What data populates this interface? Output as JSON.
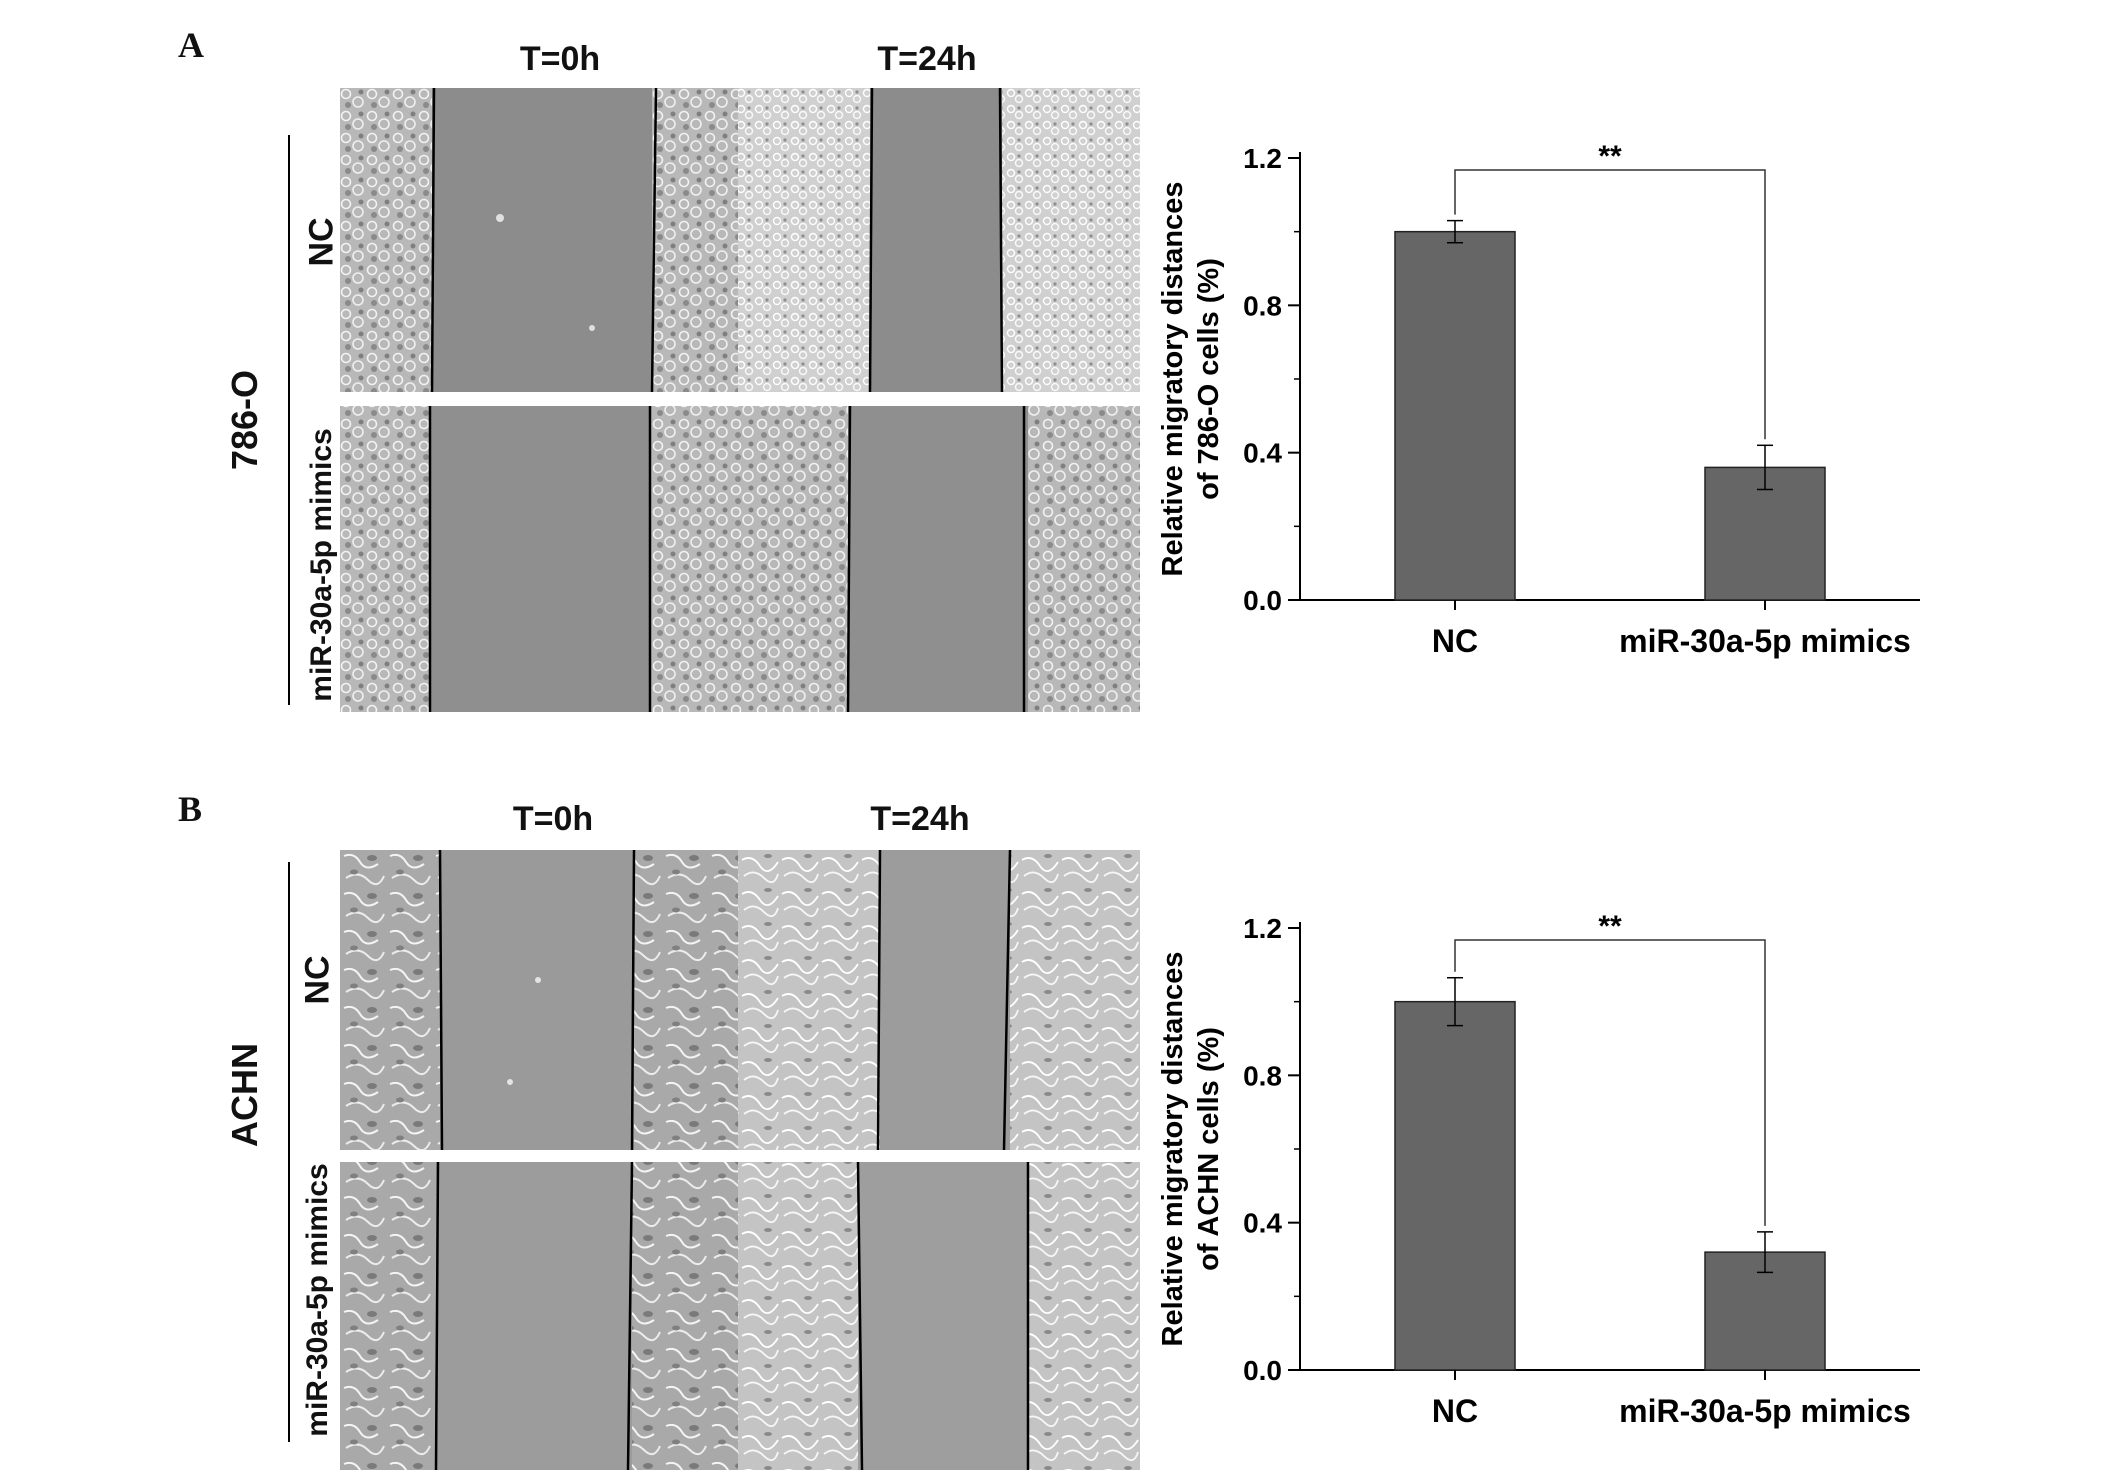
{
  "panels": [
    {
      "letter": "A",
      "cell_line": "786-O",
      "time_labels": [
        "T=0h",
        "T=24h"
      ],
      "row_labels": [
        "NC",
        "miR-30a-5p mimics"
      ],
      "image_colors": {
        "gap": "#8c8c8c",
        "cells": "#b8b8b8",
        "dense": "#d2d2d2"
      }
    },
    {
      "letter": "B",
      "cell_line": "ACHN",
      "time_labels": [
        "T=0h",
        "T=24h"
      ],
      "row_labels": [
        "NC",
        "miR-30a-5p mimics"
      ],
      "image_colors": {
        "gap": "#9a9a9a",
        "cells": "#bdbdbd",
        "dense": "#cfcfcf"
      }
    }
  ],
  "chart_data": [
    {
      "type": "bar",
      "categories": [
        "NC",
        "miR-30a-5p mimics"
      ],
      "values": [
        1.0,
        0.36
      ],
      "errors": [
        0.03,
        0.06
      ],
      "ylabel_lines": [
        "Relative migratory distances",
        "of 786-O cells (%)"
      ],
      "yticks": [
        "0.0",
        "0.4",
        "0.8",
        "1.2"
      ],
      "ylim": [
        0,
        1.2
      ],
      "significance": "**",
      "bar_color": "#666666"
    },
    {
      "type": "bar",
      "categories": [
        "NC",
        "miR-30a-5p mimics"
      ],
      "values": [
        1.0,
        0.32
      ],
      "errors": [
        0.065,
        0.055
      ],
      "ylabel_lines": [
        "Relative migratory distances",
        "of ACHN cells (%)"
      ],
      "yticks": [
        "0.0",
        "0.4",
        "0.8",
        "1.2"
      ],
      "ylim": [
        0,
        1.2
      ],
      "significance": "**",
      "bar_color": "#666666"
    }
  ]
}
